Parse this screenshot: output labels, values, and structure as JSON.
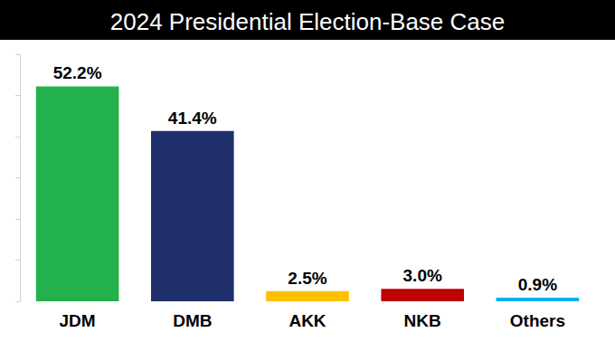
{
  "chart_data": {
    "type": "bar",
    "title": "2024 Presidential Election-Base Case",
    "categories": [
      "JDM",
      "DMB",
      "AKK",
      "NKB",
      "Others"
    ],
    "values": [
      52.2,
      41.4,
      2.5,
      3.0,
      0.9
    ],
    "value_labels": [
      "52.2%",
      "41.4%",
      "2.5%",
      "3.0%",
      "0.9%"
    ],
    "colors": [
      "#22b14c",
      "#1f2f6b",
      "#ffc000",
      "#c00000",
      "#00b0f0"
    ],
    "ylim": [
      0,
      60
    ],
    "yticks": [
      0,
      10,
      20,
      30,
      40,
      50,
      60
    ],
    "grid": false,
    "data_labels": true,
    "tick_labels": "x"
  }
}
